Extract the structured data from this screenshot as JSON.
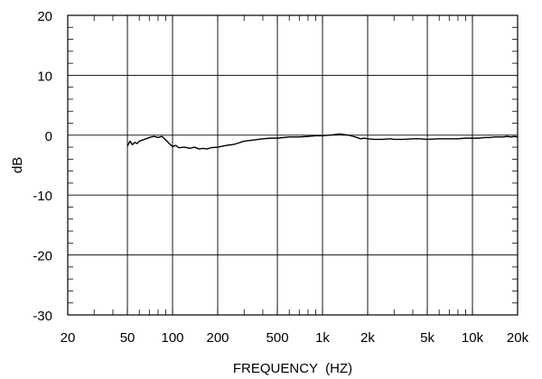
{
  "chart_data": {
    "type": "line",
    "title": "",
    "xlabel": "FREQUENCY  (HZ)",
    "ylabel": "dB",
    "xscale": "log",
    "xlim": [
      20,
      20000
    ],
    "ylim": [
      -30,
      20
    ],
    "grid": true,
    "x_ticks": [
      {
        "value": 20,
        "label": "20"
      },
      {
        "value": 50,
        "label": "50"
      },
      {
        "value": 100,
        "label": "100"
      },
      {
        "value": 200,
        "label": "200"
      },
      {
        "value": 500,
        "label": "500"
      },
      {
        "value": 1000,
        "label": "1k"
      },
      {
        "value": 2000,
        "label": "2k"
      },
      {
        "value": 5000,
        "label": "5k"
      },
      {
        "value": 10000,
        "label": "10k"
      },
      {
        "value": 20000,
        "label": "20k"
      }
    ],
    "y_ticks": [
      {
        "value": 20,
        "label": "20"
      },
      {
        "value": 10,
        "label": "10"
      },
      {
        "value": 0,
        "label": "0"
      },
      {
        "value": -10,
        "label": "-10"
      },
      {
        "value": -20,
        "label": "-20"
      },
      {
        "value": -30,
        "label": "-30"
      }
    ],
    "series": [
      {
        "color": "#000000",
        "x": [
          50,
          52,
          54,
          56,
          58,
          60,
          65,
          70,
          75,
          80,
          85,
          90,
          95,
          100,
          105,
          110,
          120,
          130,
          140,
          150,
          160,
          170,
          180,
          200,
          230,
          260,
          300,
          350,
          400,
          450,
          500,
          600,
          700,
          800,
          900,
          1000,
          1100,
          1200,
          1300,
          1400,
          1500,
          1600,
          1700,
          1800,
          1900,
          2000,
          2200,
          2500,
          2800,
          3000,
          3500,
          4000,
          4500,
          5000,
          6000,
          7000,
          8000,
          9000,
          10000,
          11000,
          12000,
          13000,
          14000,
          15000,
          16000,
          17000,
          18000,
          19000,
          20000
        ],
        "y": [
          -1.8,
          -1.0,
          -1.6,
          -1.2,
          -1.4,
          -1.0,
          -0.7,
          -0.4,
          -0.2,
          -0.4,
          -0.2,
          -0.8,
          -1.4,
          -1.9,
          -1.7,
          -2.1,
          -2.0,
          -2.2,
          -2.0,
          -2.3,
          -2.2,
          -2.3,
          -2.1,
          -2.0,
          -1.7,
          -1.5,
          -1.0,
          -0.8,
          -0.6,
          -0.5,
          -0.5,
          -0.3,
          -0.3,
          -0.2,
          -0.1,
          -0.1,
          0.0,
          0.1,
          0.2,
          0.1,
          0.0,
          -0.2,
          -0.4,
          -0.6,
          -0.5,
          -0.6,
          -0.7,
          -0.7,
          -0.6,
          -0.7,
          -0.7,
          -0.6,
          -0.6,
          -0.7,
          -0.6,
          -0.6,
          -0.6,
          -0.5,
          -0.5,
          -0.5,
          -0.4,
          -0.4,
          -0.3,
          -0.3,
          -0.3,
          -0.2,
          -0.3,
          -0.2,
          -0.3
        ]
      }
    ]
  }
}
